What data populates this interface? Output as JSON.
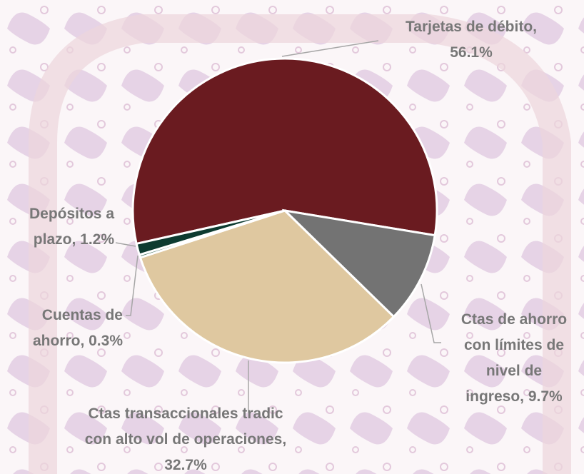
{
  "chart_data": {
    "type": "pie",
    "values": [
      56.1,
      9.7,
      32.7,
      0.3,
      1.2
    ],
    "value_labels": [
      "Tarjetas de débito, 56.1%",
      "Ctas de ahorro con límites de nivel de ingreso, 9.7%",
      "Ctas transaccionales tradic con alto vol de operaciones, 32.7%",
      "Cuentas de ahorro, 0.3%",
      "Depósitos a plazo, 1.2%"
    ],
    "colors": [
      "#6a1b20",
      "#737373",
      "#dfc8a0",
      "#4f7a6a",
      "#0d3b30"
    ]
  }
}
